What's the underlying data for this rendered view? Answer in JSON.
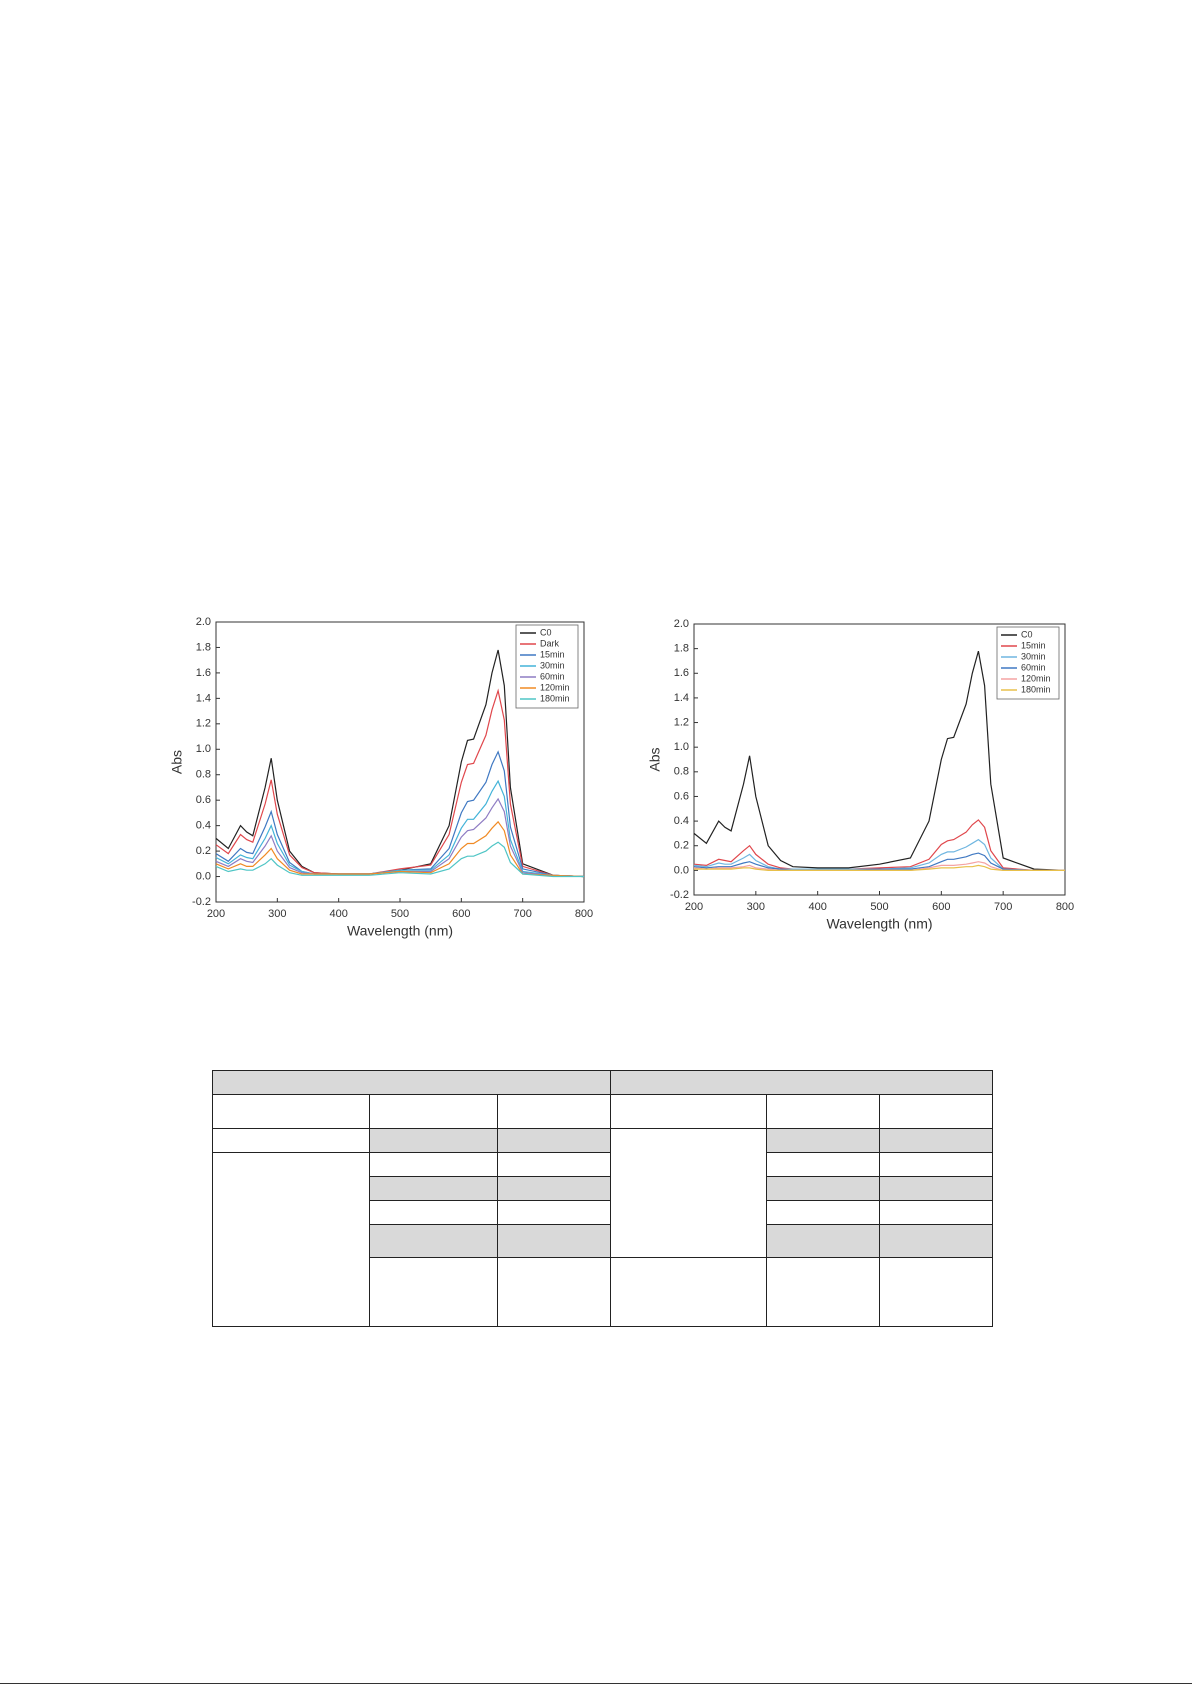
{
  "chart_data": [
    {
      "type": "line",
      "y_label": "Abs",
      "x_label": "Wavelength (nm)",
      "x": [
        200,
        220,
        240,
        250,
        260,
        280,
        290,
        300,
        320,
        340,
        360,
        400,
        450,
        500,
        550,
        580,
        600,
        610,
        620,
        640,
        650,
        660,
        670,
        680,
        700,
        750,
        800
      ],
      "xlim": [
        200,
        800
      ],
      "xticks": [
        200,
        300,
        400,
        500,
        600,
        700,
        800
      ],
      "ylim": [
        -0.2,
        2.0
      ],
      "yticks": [
        -0.2,
        {
          "value": 0,
          "label": "0.0"
        },
        0.2,
        0.4,
        0.6,
        0.8,
        {
          "value": 1,
          "label": "1.0"
        },
        1.2,
        1.4,
        1.6,
        1.8,
        {
          "value": 2,
          "label": "2.0"
        }
      ],
      "legend": "upper right",
      "series": [
        {
          "name": "C0",
          "color": "#222222",
          "values": [
            0.3,
            0.22,
            0.4,
            0.35,
            0.32,
            0.7,
            0.93,
            0.6,
            0.2,
            0.08,
            0.03,
            0.02,
            0.02,
            0.05,
            0.1,
            0.4,
            0.9,
            1.07,
            1.08,
            1.35,
            1.6,
            1.78,
            1.5,
            0.7,
            0.1,
            0.01,
            0.0
          ]
        },
        {
          "name": "Dark",
          "color": "#e0474c",
          "values": [
            0.25,
            0.18,
            0.33,
            0.29,
            0.27,
            0.57,
            0.76,
            0.49,
            0.17,
            0.07,
            0.03,
            0.02,
            0.02,
            0.06,
            0.09,
            0.33,
            0.74,
            0.88,
            0.89,
            1.11,
            1.31,
            1.46,
            1.23,
            0.57,
            0.08,
            0.01,
            0.0
          ]
        },
        {
          "name": "15min",
          "color": "#3f78c2",
          "values": [
            0.18,
            0.12,
            0.22,
            0.19,
            0.18,
            0.39,
            0.51,
            0.33,
            0.11,
            0.04,
            0.02,
            0.02,
            0.02,
            0.05,
            0.06,
            0.22,
            0.5,
            0.59,
            0.6,
            0.74,
            0.88,
            0.98,
            0.83,
            0.39,
            0.06,
            0.01,
            0.0
          ]
        },
        {
          "name": "30min",
          "color": "#43b3d8",
          "values": [
            0.15,
            0.1,
            0.17,
            0.15,
            0.14,
            0.3,
            0.4,
            0.26,
            0.09,
            0.04,
            0.02,
            0.02,
            0.02,
            0.05,
            0.05,
            0.17,
            0.38,
            0.45,
            0.45,
            0.57,
            0.67,
            0.75,
            0.63,
            0.29,
            0.04,
            0.01,
            0.0
          ]
        },
        {
          "name": "60min",
          "color": "#8e7cc3",
          "values": [
            0.12,
            0.08,
            0.14,
            0.12,
            0.11,
            0.24,
            0.32,
            0.2,
            0.07,
            0.03,
            0.02,
            0.02,
            0.02,
            0.04,
            0.04,
            0.14,
            0.31,
            0.36,
            0.37,
            0.46,
            0.54,
            0.61,
            0.51,
            0.24,
            0.03,
            0.01,
            0.0
          ]
        },
        {
          "name": "120min",
          "color": "#f08a24",
          "values": [
            0.1,
            0.06,
            0.1,
            0.08,
            0.08,
            0.17,
            0.22,
            0.14,
            0.05,
            0.02,
            0.02,
            0.02,
            0.02,
            0.04,
            0.03,
            0.1,
            0.22,
            0.26,
            0.26,
            0.32,
            0.38,
            0.43,
            0.36,
            0.17,
            0.02,
            0.01,
            0.0
          ]
        },
        {
          "name": "180min",
          "color": "#4fc5c5",
          "values": [
            0.08,
            0.04,
            0.06,
            0.05,
            0.05,
            0.1,
            0.14,
            0.09,
            0.03,
            0.01,
            0.01,
            0.01,
            0.01,
            0.03,
            0.02,
            0.06,
            0.14,
            0.16,
            0.16,
            0.2,
            0.24,
            0.27,
            0.23,
            0.11,
            0.02,
            0.0,
            0.0
          ]
        }
      ]
    },
    {
      "type": "line",
      "y_label": "Abs",
      "x_label": "Wavelength (nm)",
      "x": [
        200,
        220,
        240,
        250,
        260,
        280,
        290,
        300,
        320,
        340,
        360,
        400,
        450,
        500,
        550,
        580,
        600,
        610,
        620,
        640,
        650,
        660,
        670,
        680,
        700,
        750,
        800
      ],
      "xlim": [
        200,
        800
      ],
      "xticks": [
        200,
        300,
        400,
        500,
        600,
        700,
        800
      ],
      "ylim": [
        -0.2,
        2.0
      ],
      "yticks": [
        -0.2,
        {
          "value": 0,
          "label": "0.0"
        },
        0.2,
        0.4,
        0.6,
        0.8,
        {
          "value": 1,
          "label": "1.0"
        },
        1.2,
        1.4,
        1.6,
        1.8,
        {
          "value": 2,
          "label": "2.0"
        }
      ],
      "legend": "upper right",
      "series": [
        {
          "name": "C0",
          "color": "#222222",
          "values": [
            0.3,
            0.22,
            0.4,
            0.35,
            0.32,
            0.7,
            0.93,
            0.6,
            0.2,
            0.08,
            0.03,
            0.02,
            0.02,
            0.05,
            0.1,
            0.4,
            0.9,
            1.07,
            1.08,
            1.35,
            1.6,
            1.78,
            1.5,
            0.7,
            0.1,
            0.01,
            0.0
          ]
        },
        {
          "name": "15min",
          "color": "#e0474c",
          "values": [
            0.05,
            0.04,
            0.09,
            0.08,
            0.07,
            0.16,
            0.2,
            0.13,
            0.05,
            0.02,
            0.01,
            0.01,
            0.01,
            0.02,
            0.03,
            0.09,
            0.21,
            0.24,
            0.25,
            0.31,
            0.37,
            0.41,
            0.35,
            0.16,
            0.02,
            0.0,
            0.0
          ]
        },
        {
          "name": "30min",
          "color": "#6fb6e0",
          "values": [
            0.04,
            0.03,
            0.06,
            0.05,
            0.05,
            0.1,
            0.13,
            0.08,
            0.03,
            0.01,
            0.01,
            0.01,
            0.01,
            0.01,
            0.02,
            0.06,
            0.13,
            0.15,
            0.15,
            0.19,
            0.22,
            0.25,
            0.21,
            0.1,
            0.01,
            0.0,
            0.0
          ]
        },
        {
          "name": "60min",
          "color": "#3f78c2",
          "values": [
            0.03,
            0.02,
            0.03,
            0.03,
            0.03,
            0.06,
            0.07,
            0.05,
            0.02,
            0.01,
            0.0,
            0.0,
            0.0,
            0.01,
            0.01,
            0.03,
            0.07,
            0.09,
            0.09,
            0.11,
            0.13,
            0.14,
            0.12,
            0.06,
            0.01,
            0.0,
            0.0
          ]
        },
        {
          "name": "120min",
          "color": "#f4a3a3",
          "values": [
            0.02,
            0.01,
            0.02,
            0.02,
            0.02,
            0.03,
            0.04,
            0.02,
            0.01,
            0.0,
            0.0,
            0.0,
            0.0,
            0.0,
            0.0,
            0.02,
            0.04,
            0.04,
            0.04,
            0.05,
            0.06,
            0.07,
            0.06,
            0.03,
            0.0,
            0.0,
            0.0
          ]
        },
        {
          "name": "180min",
          "color": "#e8c04a",
          "values": [
            0.01,
            0.01,
            0.01,
            0.01,
            0.01,
            0.02,
            0.02,
            0.01,
            0.0,
            0.0,
            0.0,
            0.0,
            0.0,
            0.0,
            0.0,
            0.01,
            0.02,
            0.02,
            0.02,
            0.03,
            0.03,
            0.04,
            0.03,
            0.01,
            0.0,
            0.0,
            0.0
          ]
        }
      ]
    }
  ]
}
